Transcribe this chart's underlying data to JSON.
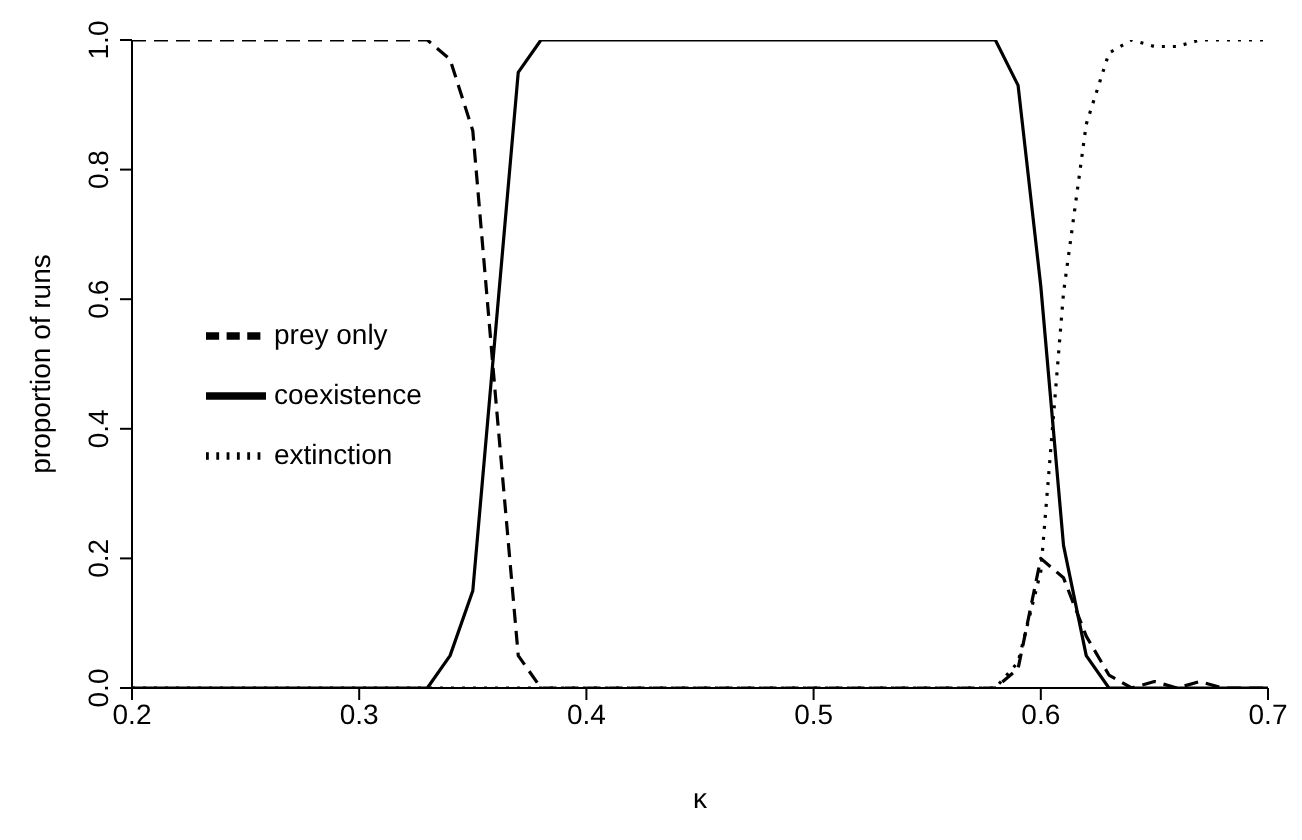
{
  "chart_data": {
    "type": "line",
    "xlabel": "κ",
    "ylabel": "proportion of runs",
    "x": [
      0.2,
      0.33,
      0.34,
      0.35,
      0.36,
      0.37,
      0.38,
      0.58,
      0.59,
      0.6,
      0.61,
      0.62,
      0.63,
      0.64,
      0.65,
      0.66,
      0.67,
      0.68,
      0.7
    ],
    "series": [
      {
        "name": "prey only",
        "color": "#000000",
        "line_style": "dashed",
        "values": [
          1,
          1,
          0.97,
          0.86,
          0.45,
          0.05,
          0,
          0,
          0.03,
          0.2,
          0.17,
          0.08,
          0.02,
          0,
          0.01,
          0,
          0.01,
          0,
          0
        ]
      },
      {
        "name": "coexistence",
        "color": "#000000",
        "line_style": "solid",
        "values": [
          0,
          0,
          0.05,
          0.15,
          0.55,
          0.95,
          1,
          1,
          0.93,
          0.62,
          0.22,
          0.05,
          0,
          0,
          0,
          0,
          0,
          0,
          0
        ]
      },
      {
        "name": "extinction",
        "color": "#000000",
        "line_style": "dotted",
        "values": [
          0,
          0,
          0,
          0,
          0,
          0,
          0,
          0,
          0.04,
          0.18,
          0.61,
          0.87,
          0.98,
          1,
          0.99,
          0.99,
          1,
          1,
          1
        ]
      }
    ],
    "xlim": [
      0.2,
      0.7
    ],
    "xticks": [
      0.2,
      0.3,
      0.4,
      0.5,
      0.6,
      0.7
    ],
    "ylim": [
      0,
      1
    ],
    "yticks": [
      {
        "value": 0,
        "label": "0.0"
      },
      0.2,
      0.4,
      0.6,
      0.8,
      {
        "value": 1,
        "label": "1.0"
      }
    ],
    "grid": false,
    "legend": "left",
    "marker": "none"
  }
}
